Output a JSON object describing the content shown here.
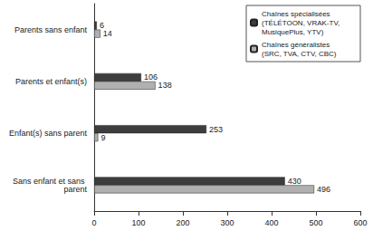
{
  "chart_data": {
    "type": "bar",
    "orientation": "horizontal",
    "categories": [
      "Parents sans enfant",
      "Parents et enfant(s)",
      "Enfant(s) sans parent",
      "Sans enfant et sans parent"
    ],
    "series": [
      {
        "name": "Chaînes spécialisées (TÉLÉTOON, VRAK-TV, MusiquePlus, YTV)",
        "color": "#3d3d3d",
        "values": [
          6,
          106,
          253,
          430
        ]
      },
      {
        "name": "Chaînes généralistes (SRC, TVA, CTV, CBC)",
        "color": "#b0b0b0",
        "values": [
          14,
          138,
          9,
          496
        ]
      }
    ],
    "xlim": [
      0,
      600
    ],
    "xticks": [
      0,
      100,
      200,
      300,
      400,
      500,
      600
    ],
    "grid": false,
    "legend": "upper right",
    "data_labels": true
  }
}
